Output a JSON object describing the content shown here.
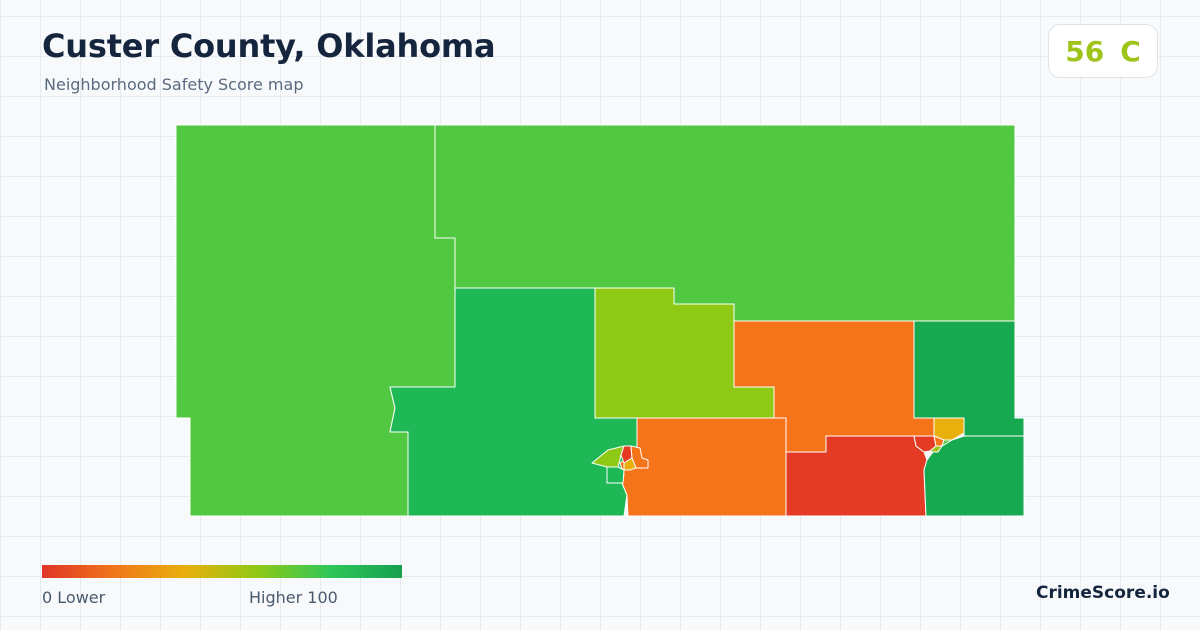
{
  "header": {
    "title": "Custer County, Oklahoma",
    "subtitle": "Neighborhood Safety Score map"
  },
  "score": {
    "value": "56",
    "grade": "C",
    "color": "#9ec41a"
  },
  "map": {
    "regions": [
      {
        "name": "northwest-tract",
        "color": "#52c742"
      },
      {
        "name": "north-tract",
        "color": "#52c742"
      },
      {
        "name": "central-west-tract",
        "color": "#1eb856"
      },
      {
        "name": "central-north-tract",
        "color": "#8ec915"
      },
      {
        "name": "central-east-tract",
        "color": "#f57319"
      },
      {
        "name": "east-tract",
        "color": "#17a950"
      },
      {
        "name": "south-central-tract",
        "color": "#f57319"
      },
      {
        "name": "southeast-tract",
        "color": "#e43b25"
      },
      {
        "name": "far-southeast-tract",
        "color": "#17a950"
      },
      {
        "name": "clinton-west-tract",
        "color": "#8ec915"
      },
      {
        "name": "clinton-south-tract",
        "color": "#1eb856"
      },
      {
        "name": "clinton-core-tract",
        "color": "#e43b25"
      },
      {
        "name": "clinton-core-tract-2",
        "color": "#f57319"
      },
      {
        "name": "clinton-north-tract",
        "color": "#e8b00c"
      },
      {
        "name": "weatherford-north-tract",
        "color": "#e8b00c"
      },
      {
        "name": "weatherford-core-tract",
        "color": "#e43b25"
      },
      {
        "name": "weatherford-mid-tract",
        "color": "#f57319"
      },
      {
        "name": "weatherford-west-tract",
        "color": "#9ec41a"
      },
      {
        "name": "weatherford-east-tract",
        "color": "#52c742"
      }
    ]
  },
  "legend": {
    "low_label": "0  Lower",
    "high_label": "Higher  100",
    "gradient": [
      "#e03528",
      "#f0761a",
      "#e8b00c",
      "#8ec915",
      "#2fc659",
      "#17a050"
    ]
  },
  "brand": "CrimeScore.io"
}
